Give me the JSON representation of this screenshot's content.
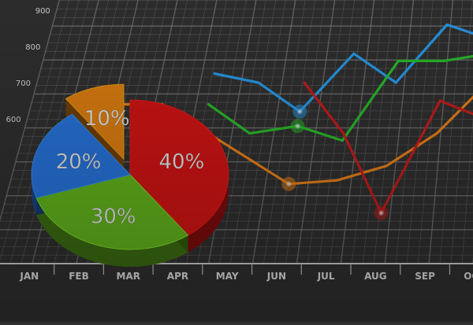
{
  "chart_data": {
    "type": "line",
    "x": [
      "JAN",
      "FEB",
      "MAR",
      "APR",
      "MAY",
      "JUN",
      "JUL",
      "AUG",
      "SEP",
      "OCT"
    ],
    "y_ticks": [
      200,
      300,
      400,
      500,
      600,
      700,
      800,
      900
    ],
    "y_tick_labels": [
      "",
      "",
      "",
      "",
      "600",
      "700",
      "800",
      "900"
    ],
    "ylim": [
      200,
      950
    ],
    "grid": true,
    "series": [
      {
        "color": "#2aa9ff",
        "values": [
          null,
          null,
          null,
          725,
          700,
          620,
          780,
          700,
          860,
          820
        ]
      },
      {
        "color": "#2ecc2e",
        "values": [
          null,
          null,
          null,
          640,
          560,
          580,
          540,
          760,
          760,
          780
        ]
      },
      {
        "color": "#ff8c1a",
        "values": [
          null,
          640,
          640,
          null,
          null,
          420,
          430,
          470,
          560,
          700
        ]
      },
      {
        "color": "#d91f1f",
        "values": [
          null,
          null,
          null,
          null,
          null,
          700,
          560,
          340,
          650,
          600
        ]
      }
    ],
    "pie": {
      "labels": [
        "40%",
        "30%",
        "20%",
        "10%"
      ],
      "values": [
        40,
        30,
        20,
        10
      ],
      "colors": [
        "#e51616",
        "#6cc51f",
        "#2b7ef0",
        "#f28a12"
      ]
    }
  }
}
